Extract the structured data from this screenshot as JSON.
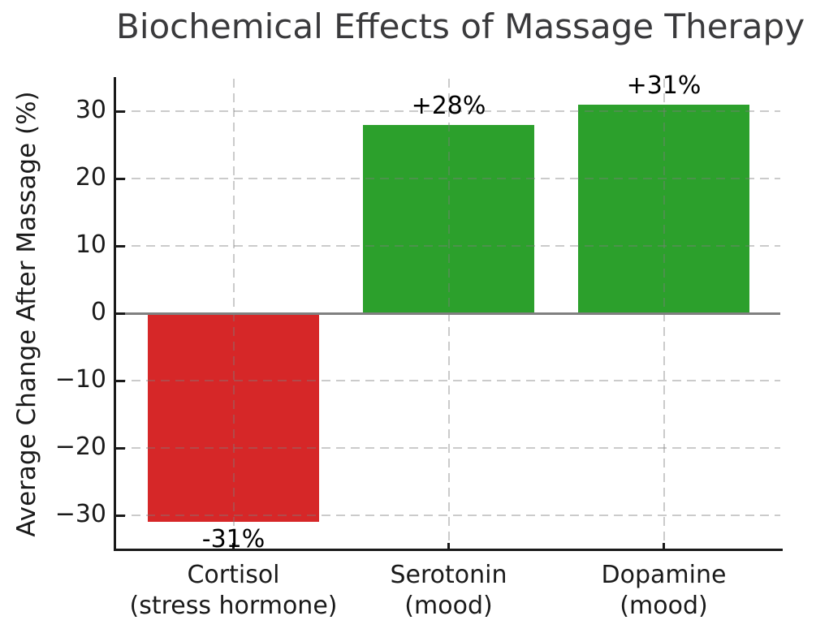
{
  "chart_data": {
    "type": "bar",
    "title": "Biochemical Effects of Massage Therapy",
    "ylabel": "Average Change After Massage (%)",
    "xlabel": "",
    "categories": [
      {
        "name": "Cortisol",
        "sub": "(stress hormone)"
      },
      {
        "name": "Serotonin",
        "sub": "(mood)"
      },
      {
        "name": "Dopamine",
        "sub": "(mood)"
      }
    ],
    "values": [
      -31,
      28,
      31
    ],
    "bar_value_labels": [
      "-31%",
      "+28%",
      "+31%"
    ],
    "bar_colors": [
      "#d62728",
      "#2ca02c",
      "#2ca02c"
    ],
    "yticks": [
      30,
      20,
      10,
      0,
      -10,
      -20,
      -30
    ],
    "ytick_labels": [
      "30",
      "20",
      "10",
      "0",
      "−10",
      "−20",
      "−30"
    ],
    "ylim": [
      -35.2,
      35.1
    ],
    "grid": {
      "style": "dashed",
      "horizontal": true,
      "vertical": true,
      "drawn_above_bars": true
    },
    "legend": null,
    "colors": {
      "title_text": "#3a3a3c",
      "axis_text": "#1a1a1a",
      "spine": "#1a1a1a",
      "zero_line": "#808080",
      "negative_bar": "#d62728",
      "positive_bar": "#2ca02c"
    }
  }
}
